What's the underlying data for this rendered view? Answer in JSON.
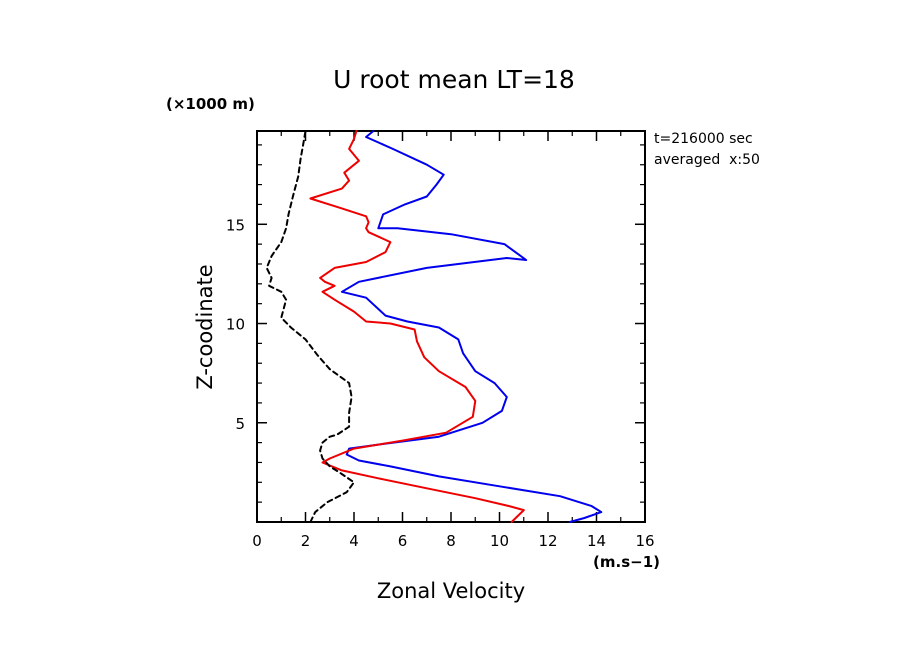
{
  "chart_data": {
    "type": "line",
    "title": "U root mean LT=18",
    "xlabel": "Zonal Velocity",
    "ylabel": "Z-coodinate",
    "x_unit": "(m.s−1)",
    "y_unit": "(×1000 m)",
    "annotations": [
      "t=216000 sec",
      "averaged  x:50"
    ],
    "xlim": [
      0,
      16
    ],
    "ylim": [
      0,
      19.7
    ],
    "xticks": [
      0,
      2,
      4,
      6,
      8,
      10,
      12,
      14,
      16
    ],
    "yticks": [
      5,
      10,
      15
    ],
    "grid": false,
    "series": [
      {
        "color": "#0000ee",
        "style": "solid",
        "points": [
          [
            12.9,
            0
          ],
          [
            13.5,
            0.2
          ],
          [
            14.2,
            0.5
          ],
          [
            13.8,
            0.8
          ],
          [
            12.5,
            1.3
          ],
          [
            10.0,
            1.8
          ],
          [
            7.5,
            2.3
          ],
          [
            5.5,
            2.8
          ],
          [
            4.2,
            3.1
          ],
          [
            3.7,
            3.4
          ],
          [
            3.8,
            3.7
          ],
          [
            5.0,
            3.9
          ],
          [
            7.5,
            4.3
          ],
          [
            9.3,
            5.0
          ],
          [
            10.1,
            5.6
          ],
          [
            10.3,
            6.3
          ],
          [
            9.8,
            7.0
          ],
          [
            9.0,
            7.6
          ],
          [
            8.5,
            8.5
          ],
          [
            8.3,
            9.2
          ],
          [
            7.5,
            9.8
          ],
          [
            6.2,
            10.1
          ],
          [
            5.3,
            10.4
          ],
          [
            4.5,
            11.3
          ],
          [
            3.5,
            11.6
          ],
          [
            4.2,
            12.1
          ],
          [
            7.0,
            12.8
          ],
          [
            10.3,
            13.3
          ],
          [
            11.1,
            13.2
          ],
          [
            10.2,
            14.0
          ],
          [
            8.0,
            14.5
          ],
          [
            5.8,
            14.8
          ],
          [
            5.0,
            14.8
          ],
          [
            5.2,
            15.5
          ],
          [
            6.1,
            16.0
          ],
          [
            7.0,
            16.4
          ],
          [
            7.4,
            17.0
          ],
          [
            7.7,
            17.5
          ],
          [
            7.0,
            18.0
          ],
          [
            5.6,
            18.8
          ],
          [
            4.5,
            19.4
          ],
          [
            4.8,
            19.7
          ]
        ]
      },
      {
        "color": "#ee0000",
        "style": "solid",
        "points": [
          [
            10.5,
            0
          ],
          [
            11.0,
            0.6
          ],
          [
            10.4,
            0.8
          ],
          [
            9.0,
            1.2
          ],
          [
            7.0,
            1.7
          ],
          [
            5.0,
            2.2
          ],
          [
            3.5,
            2.6
          ],
          [
            2.7,
            3.0
          ],
          [
            3.0,
            3.2
          ],
          [
            4.0,
            3.7
          ],
          [
            6.0,
            4.1
          ],
          [
            7.8,
            4.5
          ],
          [
            8.9,
            5.3
          ],
          [
            9.0,
            6.1
          ],
          [
            8.6,
            6.8
          ],
          [
            7.5,
            7.6
          ],
          [
            6.9,
            8.3
          ],
          [
            6.6,
            9.1
          ],
          [
            6.5,
            9.7
          ],
          [
            5.5,
            10.0
          ],
          [
            4.5,
            10.1
          ],
          [
            4.0,
            10.6
          ],
          [
            3.2,
            11.2
          ],
          [
            2.7,
            11.6
          ],
          [
            3.2,
            11.9
          ],
          [
            2.8,
            12.1
          ],
          [
            2.6,
            12.3
          ],
          [
            3.2,
            12.8
          ],
          [
            4.5,
            13.1
          ],
          [
            5.3,
            13.6
          ],
          [
            5.5,
            14.1
          ],
          [
            4.6,
            14.6
          ],
          [
            4.5,
            14.8
          ],
          [
            4.6,
            15.1
          ],
          [
            4.5,
            15.4
          ],
          [
            3.5,
            15.8
          ],
          [
            2.2,
            16.3
          ],
          [
            3.5,
            16.8
          ],
          [
            3.8,
            17.2
          ],
          [
            3.6,
            17.6
          ],
          [
            4.2,
            18.2
          ],
          [
            3.8,
            18.8
          ],
          [
            4.0,
            19.3
          ],
          [
            4.1,
            19.7
          ]
        ]
      },
      {
        "color": "#000000",
        "style": "dashed",
        "points": [
          [
            2.2,
            0
          ],
          [
            2.4,
            0.5
          ],
          [
            2.9,
            1.0
          ],
          [
            3.7,
            1.5
          ],
          [
            4.0,
            2.0
          ],
          [
            3.4,
            2.5
          ],
          [
            3.0,
            2.8
          ],
          [
            2.7,
            3.2
          ],
          [
            2.6,
            3.6
          ],
          [
            2.7,
            4.0
          ],
          [
            3.0,
            4.3
          ],
          [
            3.3,
            4.4
          ],
          [
            3.8,
            4.8
          ],
          [
            3.8,
            5.5
          ],
          [
            3.9,
            6.3
          ],
          [
            3.8,
            7.0
          ],
          [
            3.0,
            7.7
          ],
          [
            2.5,
            8.4
          ],
          [
            2.0,
            9.2
          ],
          [
            1.4,
            9.8
          ],
          [
            1.0,
            10.3
          ],
          [
            1.2,
            11.2
          ],
          [
            1.0,
            11.6
          ],
          [
            0.5,
            11.9
          ],
          [
            0.6,
            12.3
          ],
          [
            0.4,
            12.8
          ],
          [
            0.6,
            13.4
          ],
          [
            1.0,
            14.1
          ],
          [
            1.2,
            14.8
          ],
          [
            1.3,
            15.5
          ],
          [
            1.5,
            16.5
          ],
          [
            1.7,
            17.4
          ],
          [
            1.8,
            18.3
          ],
          [
            1.9,
            19.0
          ],
          [
            2.0,
            19.7
          ]
        ]
      }
    ]
  }
}
